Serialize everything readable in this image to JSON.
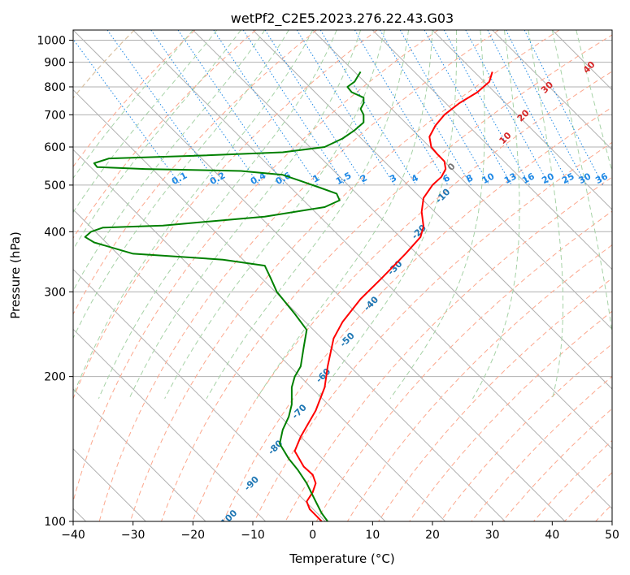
{
  "chart_data": {
    "type": "line",
    "subtype": "skew-T log-P diagram",
    "title": "wetPf2_C2E5.2023.276.22.43.G03",
    "xlabel": "Temperature (°C)",
    "ylabel": "Pressure (hPa)",
    "xlim": [
      -40,
      50
    ],
    "ylim": [
      1050,
      100
    ],
    "y_scale": "log",
    "grid": true,
    "x_ticks": [
      "−40",
      "−30",
      "−20",
      "−10",
      "0",
      "10",
      "20",
      "30",
      "40",
      "50"
    ],
    "y_ticks": [
      "100",
      "200",
      "300",
      "400",
      "500",
      "600",
      "700",
      "800",
      "900",
      "1000"
    ],
    "series": [
      {
        "color": "#ff0000",
        "points": [
          [
            30.0,
            860
          ],
          [
            29.5,
            820
          ],
          [
            27.5,
            780
          ],
          [
            24.5,
            740
          ],
          [
            22.0,
            700
          ],
          [
            20.5,
            665
          ],
          [
            19.5,
            630
          ],
          [
            19.8,
            600
          ],
          [
            20.8,
            580
          ],
          [
            22.0,
            560
          ],
          [
            22.2,
            540
          ],
          [
            21.5,
            520
          ],
          [
            20.0,
            500
          ],
          [
            18.5,
            470
          ],
          [
            18.2,
            440
          ],
          [
            18.5,
            410
          ],
          [
            18.0,
            390
          ],
          [
            15.5,
            360
          ],
          [
            11.5,
            320
          ],
          [
            8.0,
            290
          ],
          [
            5.0,
            260
          ],
          [
            3.5,
            240
          ],
          [
            2.5,
            210
          ],
          [
            2.0,
            190
          ],
          [
            0.5,
            170
          ],
          [
            -2.0,
            150
          ],
          [
            -3.0,
            140
          ],
          [
            -1.5,
            130
          ],
          [
            0.0,
            125
          ],
          [
            0.5,
            120
          ],
          [
            0.0,
            115
          ],
          [
            -1.0,
            110
          ],
          [
            -0.5,
            106
          ],
          [
            0.5,
            103
          ],
          [
            1.5,
            100
          ]
        ]
      },
      {
        "color": "#008000",
        "points": [
          [
            8.0,
            860
          ],
          [
            7.5,
            840
          ],
          [
            7.0,
            820
          ],
          [
            5.8,
            800
          ],
          [
            6.5,
            780
          ],
          [
            8.5,
            760
          ],
          [
            8.5,
            740
          ],
          [
            8.0,
            720
          ],
          [
            8.5,
            700
          ],
          [
            8.5,
            675
          ],
          [
            7.0,
            650
          ],
          [
            5.0,
            625
          ],
          [
            2.0,
            600
          ],
          [
            -5.0,
            585
          ],
          [
            -20.0,
            575
          ],
          [
            -34.0,
            568
          ],
          [
            -36.5,
            555
          ],
          [
            -36.0,
            545
          ],
          [
            -28.0,
            540
          ],
          [
            -12.0,
            535
          ],
          [
            -5.0,
            525
          ],
          [
            -2.0,
            510
          ],
          [
            1.0,
            495
          ],
          [
            4.0,
            480
          ],
          [
            4.5,
            465
          ],
          [
            2.0,
            450
          ],
          [
            -8.0,
            430
          ],
          [
            -25.0,
            412
          ],
          [
            -35.0,
            408
          ],
          [
            -37.0,
            400
          ],
          [
            -38.0,
            390
          ],
          [
            -36.5,
            380
          ],
          [
            -30.0,
            360
          ],
          [
            -15.0,
            350
          ],
          [
            -8.0,
            340
          ],
          [
            -7.0,
            320
          ],
          [
            -6.0,
            300
          ],
          [
            -3.0,
            270
          ],
          [
            -1.0,
            250
          ],
          [
            -1.5,
            230
          ],
          [
            -2.0,
            210
          ],
          [
            -3.0,
            200
          ],
          [
            -3.5,
            190
          ],
          [
            -3.5,
            175
          ],
          [
            -4.0,
            165
          ],
          [
            -5.0,
            155
          ],
          [
            -5.5,
            145
          ],
          [
            -4.0,
            135
          ],
          [
            -2.5,
            128
          ],
          [
            -1.0,
            120
          ],
          [
            0.5,
            110
          ],
          [
            1.5,
            104
          ],
          [
            2.5,
            100
          ]
        ]
      }
    ],
    "dry_adiabats": {
      "color": "#c8a070",
      "values": []
    },
    "moist_adiabats": {
      "color": "#6aaa6a",
      "values": []
    },
    "isotherms": {
      "color": "#808080",
      "values": []
    },
    "blue_isolines": {
      "color": "#1f77b4",
      "labels": [
        "-100",
        "-90",
        "-80",
        "-70",
        "-60",
        "-50",
        "-40",
        "-30",
        "-20",
        "-10"
      ]
    },
    "mixing_ratio": {
      "color": "#1e88e5",
      "labels": [
        "0.1",
        "0.2",
        "0.4",
        "0.6",
        "1",
        "1.5",
        "2",
        "3",
        "4",
        "6",
        "8",
        "10",
        "13",
        "16",
        "20",
        "25",
        "30",
        "36"
      ]
    },
    "red_isolines": {
      "color": "#d62728",
      "labels": [
        "0",
        "10",
        "20",
        "30",
        "40"
      ]
    }
  }
}
